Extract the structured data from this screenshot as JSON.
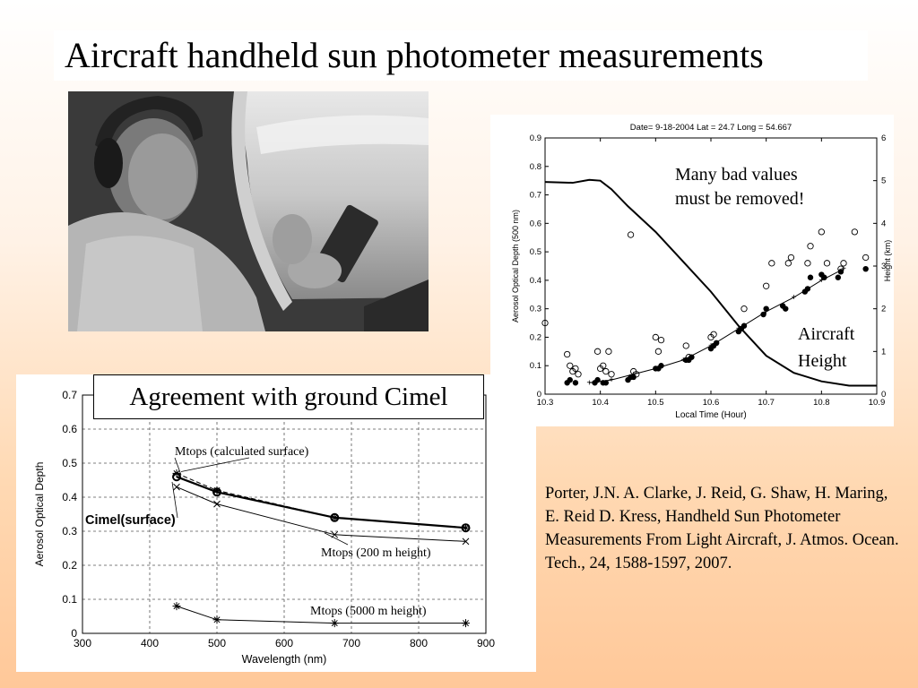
{
  "slide": {
    "title": "Aircraft handheld sun photometer measurements",
    "reference": "Porter, J.N. A. Clarke, J. Reid, G. Shaw, H. Maring, E. Reid D. Kress,  Handheld Sun Photometer Measurements From Light Aircraft, J. Atmos. Ocean. Tech., 24, 1588-1597, 2007."
  },
  "chart_data": [
    {
      "type": "scatter",
      "title": "Date= 9-18-2004        Lat = 24.7   Long = 54.667",
      "xlabel": "Local Time (Hour)",
      "ylabel": "Aerosol Optical Depth (500 nm)",
      "y2label": "Height (km)",
      "xlim": [
        10.3,
        10.9
      ],
      "ylim": [
        0,
        0.9
      ],
      "y2lim": [
        0,
        6
      ],
      "xticks": [
        "10.3",
        "10.4",
        "10.5",
        "10.6",
        "10.7",
        "10.8",
        "10.9"
      ],
      "yticks": [
        "0",
        "0.1",
        "0.2",
        "0.3",
        "0.4",
        "0.5",
        "0.6",
        "0.7",
        "0.8",
        "0.9"
      ],
      "y2ticks": [
        "0",
        "1",
        "2",
        "3",
        "4",
        "5",
        "6"
      ],
      "annotations": [
        "Many bad values\nmust be removed!",
        "Aircraft\nHeight"
      ],
      "series": [
        {
          "values_x": [
            10.3,
            10.34,
            10.345,
            10.35,
            10.355,
            10.36,
            10.395,
            10.4,
            10.405,
            10.41,
            10.415,
            10.42,
            10.455,
            10.46,
            10.465,
            10.5,
            10.505,
            10.51,
            10.555,
            10.56,
            10.6,
            10.605,
            10.66,
            10.7,
            10.71,
            10.74,
            10.745,
            10.775,
            10.78,
            10.8,
            10.81,
            10.835,
            10.84,
            10.86,
            10.88
          ],
          "values_y": [
            0.25,
            0.14,
            0.1,
            0.08,
            0.09,
            0.07,
            0.15,
            0.09,
            0.1,
            0.08,
            0.15,
            0.07,
            0.56,
            0.08,
            0.07,
            0.2,
            0.15,
            0.19,
            0.17,
            0.13,
            0.2,
            0.21,
            0.3,
            0.38,
            0.46,
            0.46,
            0.48,
            0.46,
            0.52,
            0.57,
            0.46,
            0.44,
            0.46,
            0.57,
            0.48
          ]
        },
        {
          "values_x": [
            10.34,
            10.345,
            10.355,
            10.39,
            10.395,
            10.405,
            10.41,
            10.45,
            10.455,
            10.46,
            10.5,
            10.505,
            10.51,
            10.555,
            10.56,
            10.565,
            10.6,
            10.605,
            10.61,
            10.65,
            10.655,
            10.66,
            10.695,
            10.7,
            10.73,
            10.735,
            10.77,
            10.775,
            10.78,
            10.8,
            10.805,
            10.83,
            10.835,
            10.88
          ],
          "values_y": [
            0.04,
            0.05,
            0.04,
            0.04,
            0.05,
            0.04,
            0.04,
            0.05,
            0.06,
            0.06,
            0.09,
            0.09,
            0.1,
            0.12,
            0.12,
            0.13,
            0.16,
            0.17,
            0.18,
            0.22,
            0.23,
            0.24,
            0.28,
            0.3,
            0.31,
            0.3,
            0.36,
            0.37,
            0.41,
            0.42,
            0.41,
            0.41,
            0.43,
            0.44
          ]
        },
        {
          "values_x": [
            10.38,
            10.42,
            10.46,
            10.5,
            10.55,
            10.6,
            10.65,
            10.7,
            10.75,
            10.8,
            10.84
          ],
          "values_y": [
            0.04,
            0.05,
            0.07,
            0.09,
            0.12,
            0.17,
            0.23,
            0.29,
            0.34,
            0.4,
            0.44
          ]
        },
        {
          "values_x": [
            10.3,
            10.35,
            10.38,
            10.4,
            10.42,
            10.45,
            10.5,
            10.55,
            10.6,
            10.65,
            10.7,
            10.75,
            10.8,
            10.85,
            10.9
          ],
          "values_y": [
            4.97,
            4.95,
            5.02,
            5.0,
            4.8,
            4.4,
            3.8,
            3.1,
            2.4,
            1.6,
            0.9,
            0.5,
            0.3,
            0.2,
            0.2
          ]
        }
      ]
    },
    {
      "type": "line",
      "title": "Agreement with ground Cimel",
      "xlabel": "Wavelength (nm)",
      "ylabel": "Aerosol Optical Depth",
      "xlim": [
        300,
        900
      ],
      "ylim": [
        0,
        0.7
      ],
      "xticks": [
        "300",
        "400",
        "500",
        "600",
        "700",
        "800",
        "900"
      ],
      "yticks": [
        "0",
        "0.1",
        "0.2",
        "0.3",
        "0.4",
        "0.5",
        "0.6",
        "0.7"
      ],
      "series": [
        {
          "name": "Cimel(surface)",
          "x": [
            440,
            500,
            675,
            870
          ],
          "y": [
            0.46,
            0.415,
            0.34,
            0.31
          ]
        },
        {
          "name": "Mtops (calculated surface)",
          "x": [
            440,
            500,
            675,
            870
          ],
          "y": [
            0.47,
            0.42,
            0.34,
            0.31
          ]
        },
        {
          "name": "Mtops (200 m height)",
          "x": [
            440,
            500,
            675,
            870
          ],
          "y": [
            0.43,
            0.38,
            0.29,
            0.27
          ]
        },
        {
          "name": "Mtops (5000 m height)",
          "x": [
            440,
            500,
            675,
            870
          ],
          "y": [
            0.08,
            0.04,
            0.03,
            0.03
          ]
        }
      ]
    }
  ]
}
